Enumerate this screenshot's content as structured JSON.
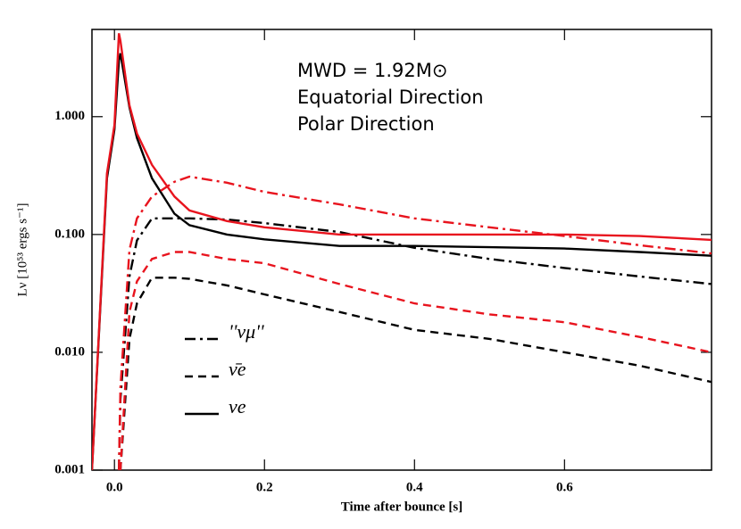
{
  "chart_data": {
    "type": "line",
    "xlabel": "Time after bounce [s]",
    "ylabel": "Lν [10⁵³ ergs s⁻¹]",
    "annotations": [
      {
        "text": "MWD = 1.92M⊙",
        "color": "#000000"
      },
      {
        "text": "Equatorial Direction",
        "color": "#000000"
      },
      {
        "text": "Polar Direction",
        "color": "#e8141e"
      }
    ],
    "log_y": true,
    "xlim": [
      -0.03,
      0.796
    ],
    "ylim": [
      0.001,
      5.5
    ],
    "xticks": [
      {
        "value": 0,
        "label": "0.0"
      },
      0.2,
      0.4,
      0.6
    ],
    "yticks": [
      {
        "value": 0.001,
        "label": "0.001"
      },
      {
        "value": 0.01,
        "label": "0.010"
      },
      {
        "value": 0.1,
        "label": "0.100"
      },
      {
        "value": 1,
        "label": "1.000"
      }
    ],
    "x": [
      -0.03,
      -0.01,
      0,
      0.006,
      0.008,
      0.02,
      0.03,
      0.05,
      0.08,
      0.1,
      0.15,
      0.2,
      0.3,
      0.4,
      0.5,
      0.6,
      0.7,
      0.796
    ],
    "series": [
      {
        "name": "''νμ''",
        "color": "#000000",
        "dash": "dashdot",
        "values": [
          null,
          null,
          null,
          0.001,
          0.004,
          0.044,
          0.089,
          0.137,
          0.137,
          0.137,
          0.134,
          0.125,
          0.105,
          0.077,
          0.062,
          0.052,
          0.044,
          0.038
        ]
      },
      {
        "name": "ν̄e",
        "color": "#000000",
        "dash": "dashed",
        "values": [
          null,
          null,
          null,
          null,
          0.001,
          0.013,
          0.026,
          0.043,
          0.043,
          0.042,
          0.037,
          0.031,
          0.022,
          0.0155,
          0.013,
          0.01,
          0.0077,
          0.0056
        ]
      },
      {
        "name": "νe",
        "color": "#000000",
        "dash": "solid",
        "values": [
          0.001,
          0.3,
          0.78,
          3.0,
          3.45,
          1.2,
          0.66,
          0.3,
          0.15,
          0.12,
          0.1,
          0.091,
          0.08,
          0.08,
          0.078,
          0.076,
          0.071,
          0.066
        ]
      },
      {
        "name": "''νμ''",
        "color": "#e8141e",
        "dash": "dashdot",
        "values": [
          null,
          null,
          null,
          0.001,
          0.005,
          0.074,
          0.137,
          0.21,
          0.28,
          0.31,
          0.275,
          0.23,
          0.18,
          0.137,
          0.115,
          0.097,
          0.081,
          0.069
        ]
      },
      {
        "name": "ν̄e",
        "color": "#e8141e",
        "dash": "dashed",
        "values": [
          null,
          null,
          null,
          null,
          0.001,
          0.022,
          0.04,
          0.062,
          0.071,
          0.071,
          0.062,
          0.057,
          0.038,
          0.026,
          0.021,
          0.018,
          0.0135,
          0.01
        ]
      },
      {
        "name": "νe",
        "color": "#e8141e",
        "dash": "solid",
        "values": [
          0.001,
          0.33,
          0.85,
          5.1,
          4.4,
          1.25,
          0.72,
          0.39,
          0.21,
          0.16,
          0.13,
          0.115,
          0.1,
          0.1,
          0.1,
          0.1,
          0.097,
          0.09
        ]
      }
    ],
    "legend_series": [
      0,
      1,
      2
    ],
    "legend": "lower left"
  }
}
